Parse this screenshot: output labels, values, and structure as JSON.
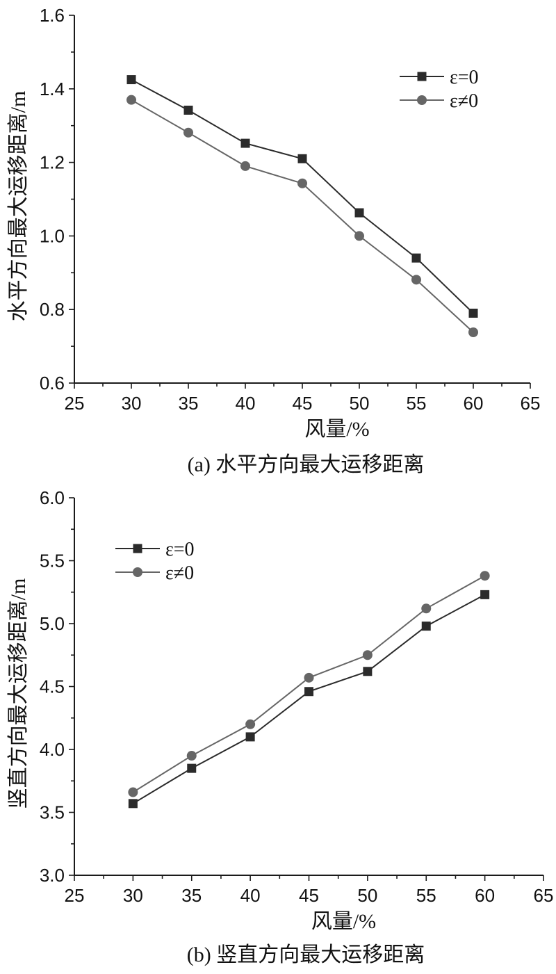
{
  "chart_data": [
    {
      "type": "line",
      "x": [
        30,
        35,
        40,
        45,
        50,
        55,
        60
      ],
      "xlabel": "风量/%",
      "ylabel": "水平方向最大运移距离/m",
      "caption": "(a) 水平方向最大运移距离",
      "xlim": [
        25,
        65
      ],
      "ylim": [
        0.6,
        1.6
      ],
      "xticks": [
        "25",
        "30",
        "35",
        "40",
        "45",
        "50",
        "55",
        "60",
        "65"
      ],
      "yticks": [
        "0.6",
        "0.8",
        "1.0",
        "1.2",
        "1.4",
        "1.6"
      ],
      "legend_position": "top-right",
      "grid": false,
      "series": [
        {
          "name": "ε=0",
          "marker": "square",
          "color": "#2b2b2b",
          "values": [
            1.425,
            1.342,
            1.252,
            1.21,
            1.063,
            0.94,
            0.79
          ]
        },
        {
          "name": "ε≠0",
          "marker": "circle",
          "color": "#666666",
          "values": [
            1.37,
            1.281,
            1.19,
            1.143,
            1.0,
            0.881,
            0.738
          ]
        }
      ]
    },
    {
      "type": "line",
      "x": [
        30,
        35,
        40,
        45,
        50,
        55,
        60
      ],
      "xlabel": "风量/%",
      "ylabel": "竖直方向最大运移距离/m",
      "caption": "(b) 竖直方向最大运移距离",
      "xlim": [
        25,
        65
      ],
      "ylim": [
        3.0,
        6.0
      ],
      "xticks": [
        "25",
        "30",
        "35",
        "40",
        "45",
        "50",
        "55",
        "60",
        "65"
      ],
      "yticks": [
        "3.0",
        "3.5",
        "4.0",
        "4.5",
        "5.0",
        "5.5",
        "6.0"
      ],
      "legend_position": "top-left",
      "grid": false,
      "series": [
        {
          "name": "ε=0",
          "marker": "square",
          "color": "#2b2b2b",
          "values": [
            3.57,
            3.85,
            4.1,
            4.46,
            4.62,
            4.98,
            5.23
          ]
        },
        {
          "name": "ε≠0",
          "marker": "circle",
          "color": "#666666",
          "values": [
            3.66,
            3.95,
            4.2,
            4.57,
            4.75,
            5.12,
            5.38
          ]
        }
      ]
    }
  ]
}
